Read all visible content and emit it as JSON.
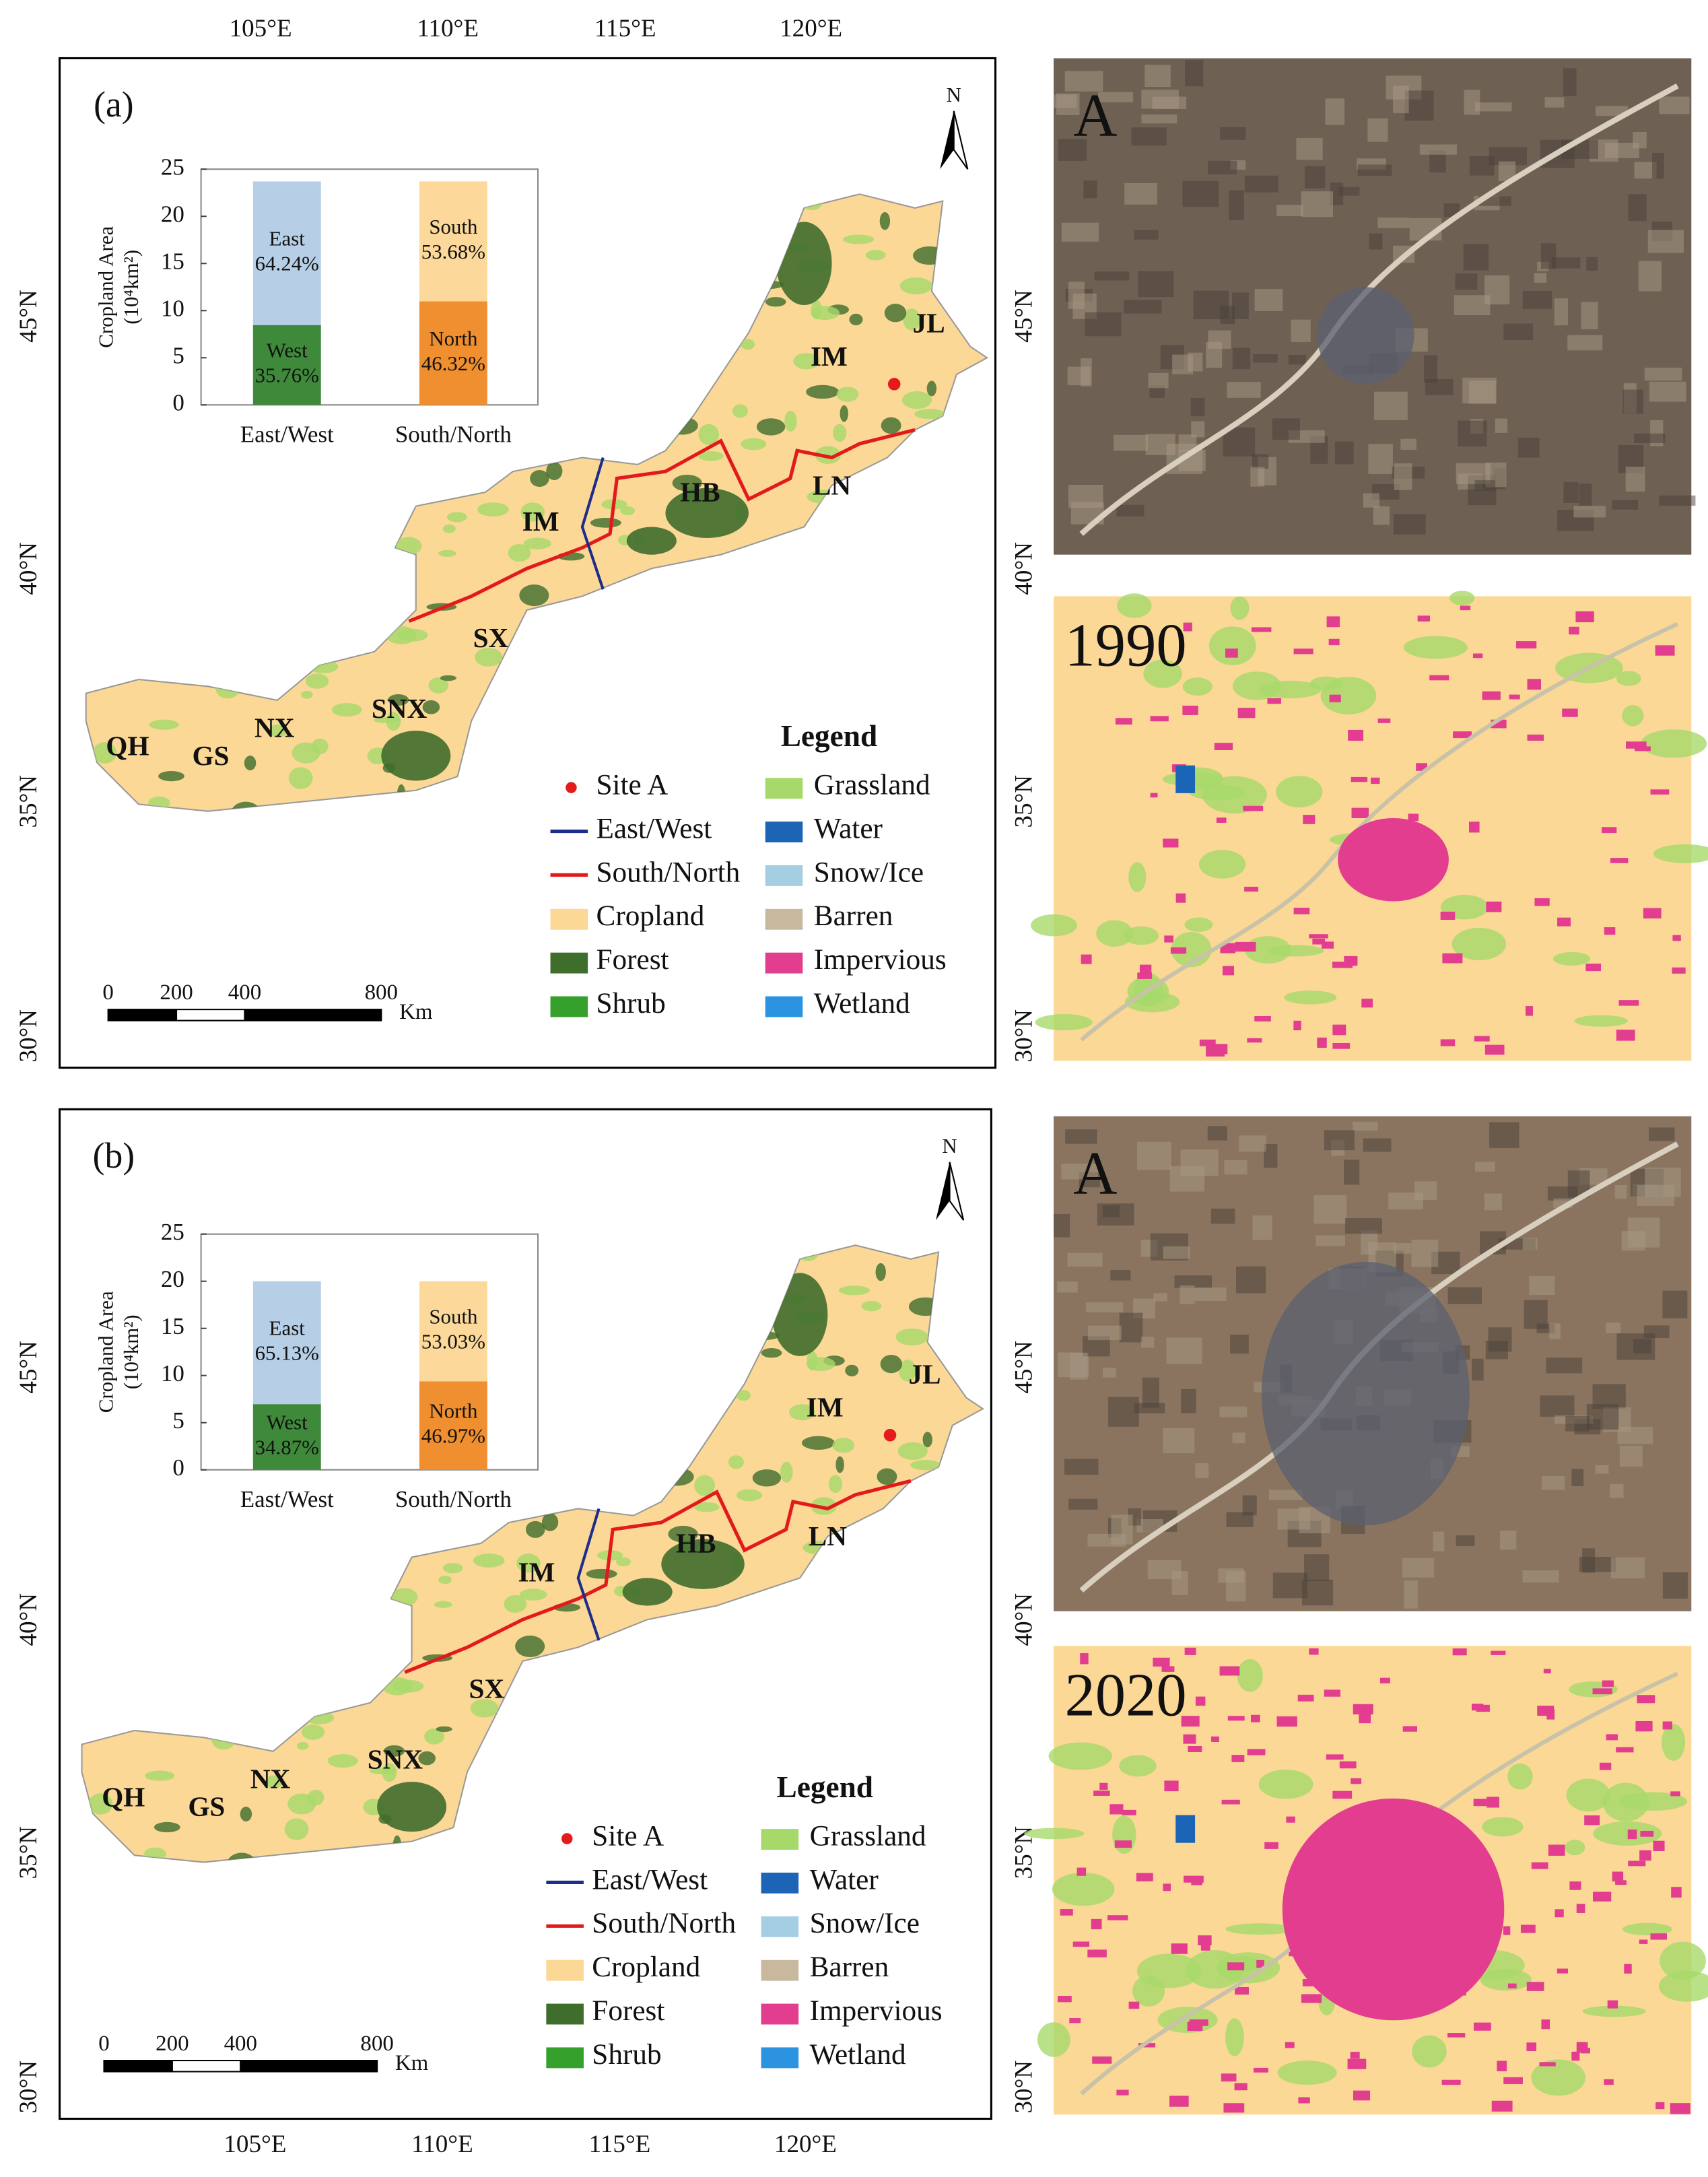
{
  "panels": [
    {
      "label": "(a)",
      "site": "A",
      "year": "1990",
      "inset": {
        "type": "bar",
        "ylabel": "Cropland Area",
        "yunit": "(10⁴km²)",
        "categories": [
          "East/West",
          "South/North"
        ],
        "ylim": [
          0,
          25
        ],
        "yticks": [
          0,
          5,
          10,
          15,
          20,
          25
        ],
        "series": [
          {
            "name": "West",
            "color": "#3f8a3a",
            "values": [
              8.47,
              null
            ],
            "share_labels": [
              "35.76%",
              null
            ]
          },
          {
            "name": "East",
            "color": "#b7cfe6",
            "values": [
              15.23,
              null
            ],
            "share_labels": [
              "64.24%",
              null
            ]
          },
          {
            "name": "North",
            "color": "#ef8f2f",
            "values": [
              null,
              10.98
            ],
            "share_labels": [
              null,
              "46.32%"
            ]
          },
          {
            "name": "South",
            "color": "#fcd99a",
            "values": [
              null,
              12.72
            ],
            "share_labels": [
              null,
              "53.68%"
            ]
          }
        ]
      }
    },
    {
      "label": "(b)",
      "site": "A",
      "year": "2020",
      "inset": {
        "type": "bar",
        "ylabel": "Cropland Area",
        "yunit": "(10⁴km²)",
        "categories": [
          "East/West",
          "South/North"
        ],
        "ylim": [
          0,
          25
        ],
        "yticks": [
          0,
          5,
          10,
          15,
          20,
          25
        ],
        "series": [
          {
            "name": "West",
            "color": "#3f8a3a",
            "values": [
              6.97,
              null
            ],
            "share_labels": [
              "34.87%",
              null
            ]
          },
          {
            "name": "East",
            "color": "#b7cfe6",
            "values": [
              13.03,
              null
            ],
            "share_labels": [
              "65.13%",
              null
            ]
          },
          {
            "name": "North",
            "color": "#ef8f2f",
            "values": [
              null,
              9.39
            ],
            "share_labels": [
              null,
              "46.97%"
            ]
          },
          {
            "name": "South",
            "color": "#fcd99a",
            "values": [
              null,
              10.61
            ],
            "share_labels": [
              null,
              "53.03%"
            ]
          }
        ]
      }
    }
  ],
  "lon_ticks": [
    "105°E",
    "110°E",
    "115°E",
    "120°E"
  ],
  "lat_ticks": [
    "45°N",
    "40°N",
    "35°N",
    "30°N"
  ],
  "regions": [
    "QH",
    "GS",
    "NX",
    "SNX",
    "SX",
    "IM",
    "HB",
    "LN",
    "IM",
    "JL"
  ],
  "north": "N",
  "scale_bar": {
    "ticks": [
      0,
      200,
      400,
      800
    ],
    "unit": "Km"
  },
  "legend": {
    "title": "Legend",
    "items": [
      {
        "label": "Site A",
        "kind": "point",
        "color": "#e41a1c"
      },
      {
        "label": "East/West",
        "kind": "line",
        "color": "#1f2d8a"
      },
      {
        "label": "South/North",
        "kind": "line",
        "color": "#e31a1c"
      },
      {
        "label": "Cropland",
        "kind": "patch",
        "color": "#fbd896"
      },
      {
        "label": "Forest",
        "kind": "patch",
        "color": "#3f6d2c"
      },
      {
        "label": "Shrub",
        "kind": "patch",
        "color": "#36a02c"
      },
      {
        "label": "Grassland",
        "kind": "patch",
        "color": "#a6d96a"
      },
      {
        "label": "Water",
        "kind": "patch",
        "color": "#1c64b5"
      },
      {
        "label": "Snow/Ice",
        "kind": "patch",
        "color": "#a6cee3"
      },
      {
        "label": "Barren",
        "kind": "patch",
        "color": "#c8b89e"
      },
      {
        "label": "Impervious",
        "kind": "patch",
        "color": "#e23d8e"
      },
      {
        "label": "Wetland",
        "kind": "patch",
        "color": "#2c93e0"
      }
    ]
  }
}
